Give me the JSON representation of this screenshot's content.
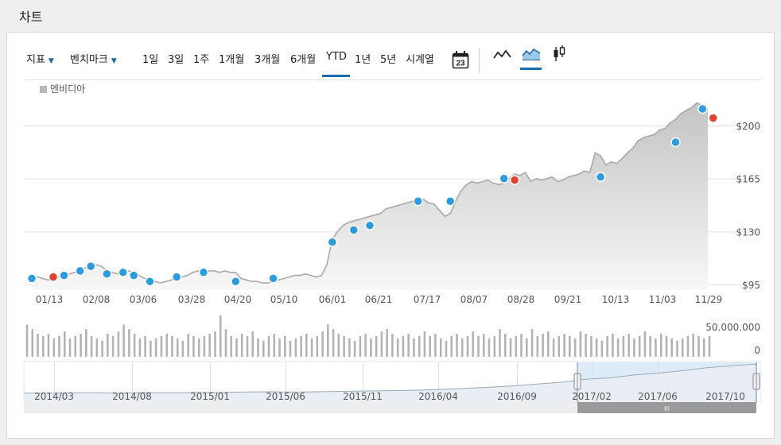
{
  "page": {
    "title": "차트"
  },
  "toolbar": {
    "indicator_label": "지표",
    "benchmark_label": "벤치마크",
    "ranges": [
      "1일",
      "3일",
      "1주",
      "1개월",
      "3개월",
      "6개월",
      "YTD",
      "1년",
      "5년",
      "시계열"
    ],
    "active_range": "YTD",
    "calendar_day": "23",
    "chart_types": [
      "line-chart-icon",
      "area-chart-icon",
      "candlestick-icon"
    ],
    "active_chart_type": "area-chart-icon"
  },
  "colors": {
    "accent": "#1a6bb0",
    "area_line": "#a9a9a9",
    "event_blue": "#2d9bdc",
    "event_red": "#dd4433",
    "volume": "#b3b3b3",
    "navigator_band": "#dcebf7"
  },
  "chart_data": [
    {
      "type": "area",
      "series": [
        {
          "name": "엔비디아",
          "values": [
            101,
            100,
            99,
            98,
            98,
            100,
            101,
            102,
            103,
            104,
            106,
            107,
            108,
            107,
            104,
            103,
            102,
            103,
            104,
            103,
            101,
            99,
            98,
            97,
            96,
            97,
            98,
            99,
            100,
            101,
            103,
            104,
            105,
            104,
            104,
            103,
            104,
            103,
            103,
            99,
            98,
            97,
            97,
            96,
            96,
            97,
            98,
            99,
            100,
            101,
            101,
            102,
            101,
            100,
            101,
            108,
            125,
            130,
            134,
            136,
            137,
            138,
            139,
            140,
            141,
            142,
            145,
            146,
            147,
            148,
            149,
            150,
            152,
            151,
            149,
            148,
            144,
            140,
            142,
            150,
            157,
            161,
            163,
            162,
            163,
            164,
            162,
            161,
            162,
            165,
            168,
            167,
            169,
            163,
            165,
            164,
            165,
            166,
            163,
            164,
            166,
            167,
            168,
            170,
            169,
            182,
            180,
            174,
            176,
            175,
            178,
            182,
            185,
            190,
            192,
            193,
            194,
            197,
            198,
            202,
            204,
            208,
            210,
            212,
            215,
            213,
            211
          ]
        }
      ],
      "x_labels": [
        "01/13",
        "02/08",
        "03/06",
        "03/28",
        "04/20",
        "05/10",
        "06/01",
        "06/21",
        "07/17",
        "08/07",
        "08/28",
        "09/21",
        "10/13",
        "11/03",
        "11/29"
      ],
      "y_ticks": [
        "$95",
        "$130",
        "$165",
        "$200"
      ],
      "ylim": [
        93,
        220
      ],
      "events": [
        {
          "x": 0,
          "y": 99,
          "type": "blue"
        },
        {
          "x": 4,
          "y": 100,
          "type": "red"
        },
        {
          "x": 6,
          "y": 101,
          "type": "blue"
        },
        {
          "x": 9,
          "y": 104,
          "type": "blue"
        },
        {
          "x": 11,
          "y": 107,
          "type": "blue"
        },
        {
          "x": 14,
          "y": 102,
          "type": "blue"
        },
        {
          "x": 17,
          "y": 103,
          "type": "blue"
        },
        {
          "x": 19,
          "y": 101,
          "type": "blue"
        },
        {
          "x": 22,
          "y": 97,
          "type": "blue"
        },
        {
          "x": 27,
          "y": 100,
          "type": "blue"
        },
        {
          "x": 32,
          "y": 103,
          "type": "blue"
        },
        {
          "x": 38,
          "y": 97,
          "type": "blue"
        },
        {
          "x": 45,
          "y": 99,
          "type": "blue"
        },
        {
          "x": 56,
          "y": 123,
          "type": "blue"
        },
        {
          "x": 60,
          "y": 131,
          "type": "blue"
        },
        {
          "x": 63,
          "y": 134,
          "type": "blue"
        },
        {
          "x": 72,
          "y": 150,
          "type": "blue"
        },
        {
          "x": 78,
          "y": 150,
          "type": "blue"
        },
        {
          "x": 88,
          "y": 165,
          "type": "blue"
        },
        {
          "x": 90,
          "y": 164,
          "type": "red"
        },
        {
          "x": 106,
          "y": 166,
          "type": "blue"
        },
        {
          "x": 120,
          "y": 189,
          "type": "blue"
        },
        {
          "x": 125,
          "y": 211,
          "type": "blue"
        },
        {
          "x": 127,
          "y": 205,
          "type": "red"
        }
      ]
    },
    {
      "type": "bar",
      "title": "volume",
      "y_ticks": [
        "50.000.000",
        "0"
      ],
      "ylim": [
        0,
        50000000
      ],
      "values": [
        14,
        12,
        10,
        9,
        10,
        8,
        9,
        11,
        8,
        9,
        10,
        12,
        9,
        8,
        7,
        10,
        9,
        11,
        14,
        12,
        10,
        8,
        9,
        7,
        8,
        9,
        10,
        9,
        8,
        7,
        10,
        9,
        8,
        9,
        10,
        11,
        18,
        12,
        9,
        8,
        10,
        9,
        11,
        8,
        7,
        9,
        10,
        8,
        9,
        7,
        8,
        9,
        10,
        8,
        9,
        11,
        14,
        12,
        10,
        9,
        8,
        7,
        9,
        10,
        8,
        9,
        11,
        12,
        10,
        8,
        9,
        10,
        8,
        9,
        11,
        9,
        10,
        8,
        7,
        9,
        10,
        8,
        9,
        11,
        9,
        10,
        8,
        9,
        12,
        10,
        8,
        9,
        10,
        8,
        12,
        9,
        10,
        11,
        8,
        9,
        10,
        9,
        8,
        11,
        10,
        9,
        8,
        7,
        9,
        10,
        8,
        9,
        10,
        8,
        9,
        11,
        9,
        8,
        10,
        9,
        8,
        7,
        8,
        9,
        10,
        9,
        8,
        9
      ]
    },
    {
      "type": "line",
      "title": "navigator",
      "x_labels": [
        "2014/03",
        "2014/08",
        "2015/01",
        "2015/06",
        "2015/11",
        "2016/04",
        "2016/09",
        "2017/02",
        "2017/06",
        "2017/10"
      ],
      "values": [
        20,
        20,
        21,
        21,
        20,
        22,
        21,
        22,
        22,
        23,
        24,
        23,
        24,
        25,
        26,
        27,
        28,
        30,
        33,
        36,
        40,
        45,
        50,
        58,
        62,
        70,
        75,
        82,
        90,
        95,
        100
      ]
    }
  ]
}
